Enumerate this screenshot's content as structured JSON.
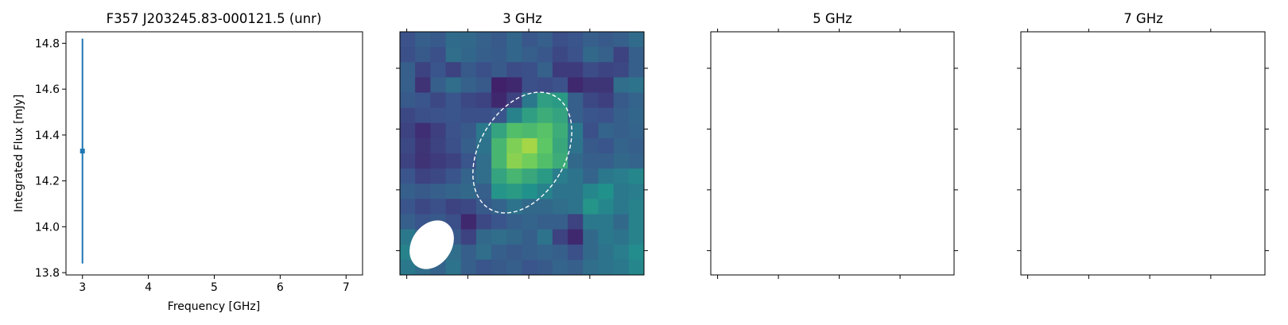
{
  "chart_data": [
    {
      "type": "scatter",
      "title": "F357 J203245.83-000121.5 (unr)",
      "xlabel": "Frequency [GHz]",
      "ylabel": "Integrated Flux [mJy]",
      "xlim": [
        2.75,
        7.25
      ],
      "ylim": [
        13.79,
        14.85
      ],
      "xticks": [
        3,
        4,
        5,
        6,
        7
      ],
      "yticks": [
        13.8,
        14.0,
        14.2,
        14.4,
        14.6,
        14.8
      ],
      "xtick_labels": [
        "3",
        "4",
        "5",
        "6",
        "7"
      ],
      "ytick_labels": [
        "13.8",
        "14.0",
        "14.2",
        "14.4",
        "14.6",
        "14.8"
      ],
      "points": [
        {
          "x": 3,
          "y": 14.33,
          "yerr_low": 13.84,
          "yerr_high": 14.82
        }
      ],
      "color": "#1f77b4"
    },
    {
      "type": "heatmap",
      "title": "3 GHz",
      "colormap": "viridis",
      "grid": [
        [
          0.25,
          0.3,
          0.28,
          0.35,
          0.34,
          0.31,
          0.28,
          0.33,
          0.27,
          0.3,
          0.24,
          0.26,
          0.3,
          0.28,
          0.3,
          0.35
        ],
        [
          0.24,
          0.28,
          0.24,
          0.36,
          0.33,
          0.3,
          0.29,
          0.33,
          0.3,
          0.27,
          0.22,
          0.25,
          0.34,
          0.31,
          0.2,
          0.3
        ],
        [
          0.3,
          0.2,
          0.26,
          0.2,
          0.28,
          0.24,
          0.28,
          0.23,
          0.24,
          0.31,
          0.18,
          0.18,
          0.23,
          0.21,
          0.22,
          0.3
        ],
        [
          0.3,
          0.15,
          0.3,
          0.36,
          0.31,
          0.28,
          0.1,
          0.12,
          0.24,
          0.23,
          0.25,
          0.12,
          0.16,
          0.16,
          0.36,
          0.38
        ],
        [
          0.28,
          0.26,
          0.22,
          0.26,
          0.22,
          0.2,
          0.12,
          0.2,
          0.4,
          0.56,
          0.54,
          0.3,
          0.22,
          0.19,
          0.28,
          0.32
        ],
        [
          0.22,
          0.24,
          0.25,
          0.26,
          0.24,
          0.24,
          0.26,
          0.44,
          0.56,
          0.62,
          0.58,
          0.3,
          0.26,
          0.25,
          0.3,
          0.33
        ],
        [
          0.2,
          0.14,
          0.19,
          0.25,
          0.28,
          0.4,
          0.58,
          0.7,
          0.68,
          0.72,
          0.62,
          0.4,
          0.24,
          0.32,
          0.3,
          0.32
        ],
        [
          0.22,
          0.16,
          0.2,
          0.24,
          0.3,
          0.38,
          0.66,
          0.8,
          0.86,
          0.74,
          0.6,
          0.38,
          0.28,
          0.26,
          0.32,
          0.3
        ],
        [
          0.2,
          0.15,
          0.18,
          0.2,
          0.26,
          0.36,
          0.66,
          0.82,
          0.78,
          0.7,
          0.62,
          0.34,
          0.3,
          0.3,
          0.34,
          0.32
        ],
        [
          0.26,
          0.2,
          0.22,
          0.26,
          0.32,
          0.36,
          0.58,
          0.66,
          0.6,
          0.54,
          0.42,
          0.38,
          0.32,
          0.4,
          0.42,
          0.46
        ],
        [
          0.3,
          0.28,
          0.3,
          0.32,
          0.34,
          0.3,
          0.52,
          0.54,
          0.5,
          0.44,
          0.38,
          0.38,
          0.46,
          0.5,
          0.4,
          0.42
        ],
        [
          0.26,
          0.22,
          0.24,
          0.2,
          0.22,
          0.28,
          0.32,
          0.38,
          0.34,
          0.34,
          0.36,
          0.38,
          0.52,
          0.46,
          0.4,
          0.44
        ],
        [
          0.3,
          0.26,
          0.28,
          0.24,
          0.12,
          0.22,
          0.26,
          0.3,
          0.32,
          0.3,
          0.3,
          0.2,
          0.4,
          0.4,
          0.34,
          0.44
        ],
        [
          0.4,
          0.32,
          0.3,
          0.28,
          0.2,
          0.34,
          0.36,
          0.34,
          0.3,
          0.38,
          0.2,
          0.12,
          0.34,
          0.4,
          0.38,
          0.44
        ],
        [
          0.44,
          0.4,
          0.38,
          0.36,
          0.3,
          0.36,
          0.3,
          0.28,
          0.3,
          0.32,
          0.3,
          0.24,
          0.34,
          0.38,
          0.42,
          0.48
        ],
        [
          0.4,
          0.36,
          0.32,
          0.38,
          0.3,
          0.26,
          0.28,
          0.3,
          0.26,
          0.28,
          0.32,
          0.3,
          0.36,
          0.38,
          0.4,
          0.46
        ]
      ]
    },
    {
      "type": "heatmap",
      "title": "5 GHz",
      "grid": []
    },
    {
      "type": "heatmap",
      "title": "7 GHz",
      "grid": []
    }
  ]
}
